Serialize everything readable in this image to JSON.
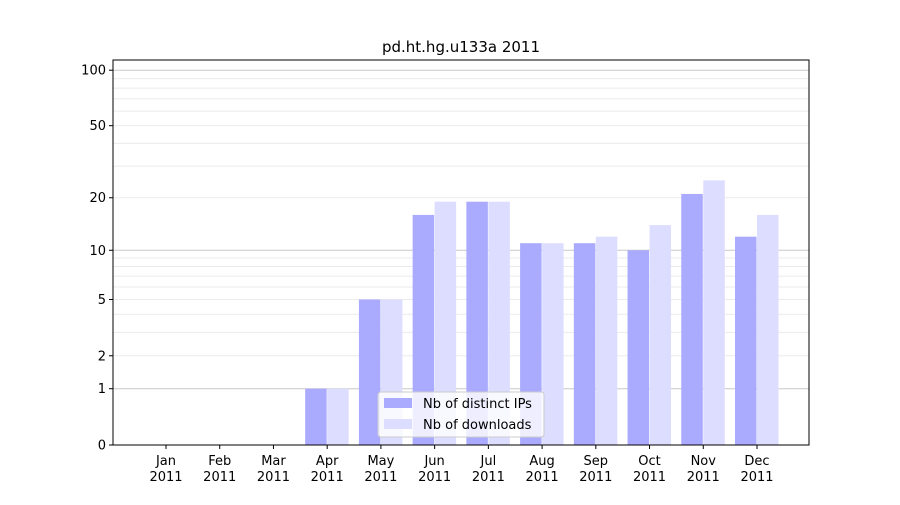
{
  "chart_data": {
    "type": "bar",
    "title": "pd.ht.hg.u133a 2011",
    "xlabel": "",
    "ylabel": "",
    "yscale": "log(1+y)",
    "ylim": [
      0,
      110
    ],
    "yticks": [
      0,
      1,
      2,
      5,
      10,
      20,
      50,
      100
    ],
    "grid": true,
    "legend_position": "lower-center",
    "categories": [
      "Jan\n2011",
      "Feb\n2011",
      "Mar\n2011",
      "Apr\n2011",
      "May\n2011",
      "Jun\n2011",
      "Jul\n2011",
      "Aug\n2011",
      "Sep\n2011",
      "Oct\n2011",
      "Nov\n2011",
      "Dec\n2011"
    ],
    "series": [
      {
        "name": "Nb of distinct IPs",
        "color": "#aaaaff",
        "values": [
          0,
          0,
          0,
          1,
          5,
          16,
          19,
          11,
          11,
          10,
          21,
          12
        ]
      },
      {
        "name": "Nb of downloads",
        "color": "#ddddff",
        "values": [
          0,
          0,
          0,
          1,
          5,
          19,
          19,
          11,
          12,
          14,
          25,
          16
        ]
      }
    ]
  }
}
